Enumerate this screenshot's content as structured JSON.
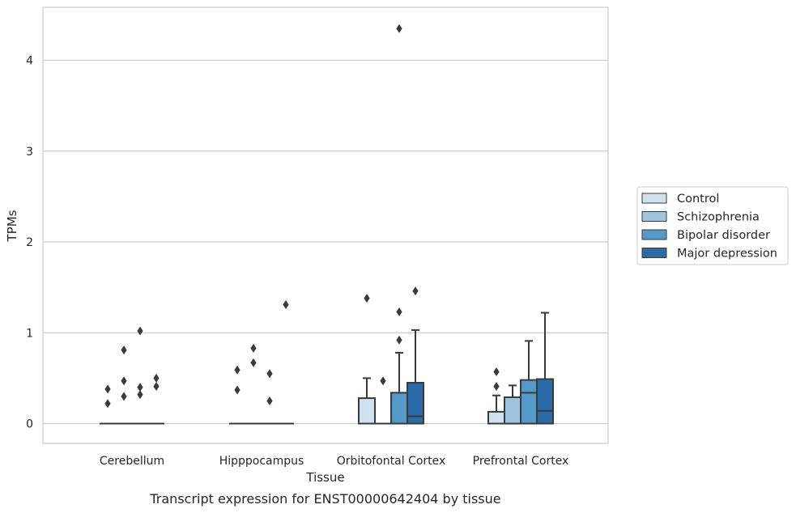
{
  "caption": "Transcript expression for ENST00000642404 by tissue",
  "chart_data": {
    "type": "box",
    "xlabel": "Tissue",
    "ylabel": "TPMs",
    "ylim": [
      -0.21,
      4.6
    ],
    "yticks": [
      0,
      1,
      2,
      3,
      4
    ],
    "grid": "horizontal",
    "legend_position": "right",
    "categories": [
      "Cerebellum",
      "Hipppocampus",
      "Orbitofontal Cortex",
      "Prefrontal Cortex"
    ],
    "series": [
      {
        "name": "Control",
        "color": "#cfe0ef",
        "boxes": [
          {
            "q1": 0,
            "median": 0,
            "q3": 0,
            "whisker_low": 0,
            "whisker_high": 0,
            "outliers": [
              0.22,
              0.38
            ]
          },
          {
            "q1": 0,
            "median": 0,
            "q3": 0,
            "whisker_low": 0,
            "whisker_high": 0,
            "outliers": [
              0.37,
              0.59
            ]
          },
          {
            "q1": 0,
            "median": 0,
            "q3": 0.28,
            "whisker_low": 0,
            "whisker_high": 0.5,
            "outliers": [
              1.38
            ]
          },
          {
            "q1": 0,
            "median": 0,
            "q3": 0.13,
            "whisker_low": 0,
            "whisker_high": 0.31,
            "outliers": [
              0.41,
              0.57
            ]
          }
        ]
      },
      {
        "name": "Schizophrenia",
        "color": "#9fc4dd",
        "boxes": [
          {
            "q1": 0,
            "median": 0,
            "q3": 0,
            "whisker_low": 0,
            "whisker_high": 0,
            "outliers": [
              0.3,
              0.47,
              0.81
            ]
          },
          {
            "q1": 0,
            "median": 0,
            "q3": 0,
            "whisker_low": 0,
            "whisker_high": 0,
            "outliers": [
              0.67,
              0.83
            ]
          },
          {
            "q1": 0,
            "median": 0,
            "q3": 0,
            "whisker_low": 0,
            "whisker_high": 0,
            "outliers": [
              0.47
            ]
          },
          {
            "q1": 0,
            "median": 0,
            "q3": 0.29,
            "whisker_low": 0,
            "whisker_high": 0.42,
            "outliers": []
          }
        ]
      },
      {
        "name": "Bipolar disorder",
        "color": "#5599c8",
        "boxes": [
          {
            "q1": 0,
            "median": 0,
            "q3": 0,
            "whisker_low": 0,
            "whisker_high": 0,
            "outliers": [
              0.32,
              0.4,
              1.02
            ]
          },
          {
            "q1": 0,
            "median": 0,
            "q3": 0,
            "whisker_low": 0,
            "whisker_high": 0,
            "outliers": [
              0.25,
              0.55
            ]
          },
          {
            "q1": 0,
            "median": 0,
            "q3": 0.34,
            "whisker_low": 0,
            "whisker_high": 0.78,
            "outliers": [
              0.92,
              1.23,
              4.35
            ]
          },
          {
            "q1": 0,
            "median": 0.34,
            "q3": 0.48,
            "whisker_low": 0,
            "whisker_high": 0.91,
            "outliers": []
          }
        ]
      },
      {
        "name": "Major depression",
        "color": "#2b6ba7",
        "boxes": [
          {
            "q1": 0,
            "median": 0,
            "q3": 0,
            "whisker_low": 0,
            "whisker_high": 0,
            "outliers": [
              0.41,
              0.5
            ]
          },
          {
            "q1": 0,
            "median": 0,
            "q3": 0,
            "whisker_low": 0,
            "whisker_high": 0,
            "outliers": [
              1.31
            ]
          },
          {
            "q1": 0,
            "median": 0.08,
            "q3": 0.45,
            "whisker_low": 0,
            "whisker_high": 1.03,
            "outliers": [
              1.46
            ]
          },
          {
            "q1": 0,
            "median": 0.14,
            "q3": 0.49,
            "whisker_low": 0,
            "whisker_high": 1.22,
            "outliers": []
          }
        ]
      }
    ]
  }
}
